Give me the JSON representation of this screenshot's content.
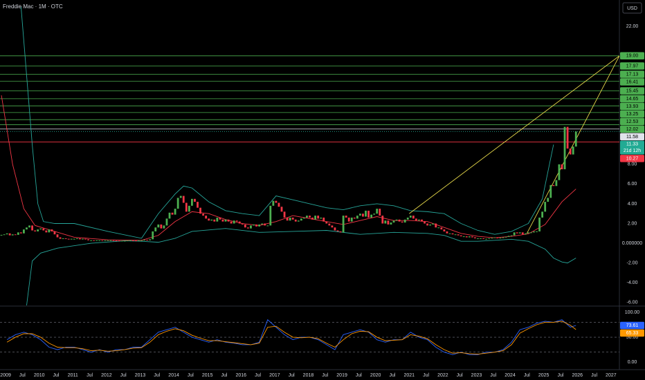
{
  "header": {
    "title": "Freddie Mac · 1M · OTC",
    "currency": "USD"
  },
  "chart_data": {
    "type": "candlestick",
    "up_color": "#4caf50",
    "down_color": "#f23645",
    "grid": false,
    "xlim": [
      "2008-11",
      "2027-04"
    ],
    "ylim": [
      -6.3,
      24.66
    ],
    "yticks": [
      {
        "value": 22,
        "label": "22.00"
      },
      {
        "value": 8,
        "label": "8.00"
      },
      {
        "value": 6,
        "label": "6.00"
      },
      {
        "value": 4,
        "label": "4.00"
      },
      {
        "value": 2,
        "label": "2.00"
      },
      {
        "value": 0,
        "label": "0.000000"
      },
      {
        "value": -2,
        "label": "-2.00"
      },
      {
        "value": -4,
        "label": "-4.00"
      },
      {
        "value": -6,
        "label": "-6.00"
      }
    ],
    "xticks": [
      {
        "value": "2009-01",
        "label": "2009"
      },
      {
        "value": "2009-07",
        "label": "Jul"
      },
      {
        "value": "2010-01",
        "label": "2010"
      },
      {
        "value": "2010-07",
        "label": "Jul"
      },
      {
        "value": "2011-01",
        "label": "2011"
      },
      {
        "value": "2011-07",
        "label": "Jul"
      },
      {
        "value": "2012-01",
        "label": "2012"
      },
      {
        "value": "2012-07",
        "label": "Jul"
      },
      {
        "value": "2013-01",
        "label": "2013"
      },
      {
        "value": "2013-07",
        "label": "Jul"
      },
      {
        "value": "2014-01",
        "label": "2014"
      },
      {
        "value": "2014-07",
        "label": "Jul"
      },
      {
        "value": "2015-01",
        "label": "2015"
      },
      {
        "value": "2015-07",
        "label": "Jul"
      },
      {
        "value": "2016-01",
        "label": "2016"
      },
      {
        "value": "2016-07",
        "label": "Jul"
      },
      {
        "value": "2017-01",
        "label": "2017"
      },
      {
        "value": "2017-07",
        "label": "Jul"
      },
      {
        "value": "2018-01",
        "label": "2018"
      },
      {
        "value": "2018-07",
        "label": "Jul"
      },
      {
        "value": "2019-01",
        "label": "2019"
      },
      {
        "value": "2019-07",
        "label": "Jul"
      },
      {
        "value": "2020-01",
        "label": "2020"
      },
      {
        "value": "2020-07",
        "label": "Jul"
      },
      {
        "value": "2021-01",
        "label": "2021"
      },
      {
        "value": "2021-07",
        "label": "Jul"
      },
      {
        "value": "2022-01",
        "label": "2022"
      },
      {
        "value": "2022-07",
        "label": "Jul"
      },
      {
        "value": "2023-01",
        "label": "2023"
      },
      {
        "value": "2023-07",
        "label": "Jul"
      },
      {
        "value": "2024-01",
        "label": "2024"
      },
      {
        "value": "2024-07",
        "label": "Jul"
      },
      {
        "value": "2025-01",
        "label": "2025"
      },
      {
        "value": "2025-07",
        "label": "Jul"
      },
      {
        "value": "2026-01",
        "label": "2026"
      },
      {
        "value": "2026-07",
        "label": "Jul"
      },
      {
        "value": "2027-01",
        "label": "2027"
      }
    ],
    "x": [
      "2008-11",
      "2008-12",
      "2009-01",
      "2009-02",
      "2009-03",
      "2009-04",
      "2009-05",
      "2009-06",
      "2009-07",
      "2009-08",
      "2009-09",
      "2009-10",
      "2009-11",
      "2009-12",
      "2010-01",
      "2010-02",
      "2010-03",
      "2010-04",
      "2010-05",
      "2010-06",
      "2010-07",
      "2010-08",
      "2010-09",
      "2010-10",
      "2010-11",
      "2010-12",
      "2011-01",
      "2011-02",
      "2011-03",
      "2011-04",
      "2011-05",
      "2011-06",
      "2011-07",
      "2011-08",
      "2011-09",
      "2011-10",
      "2011-11",
      "2011-12",
      "2012-01",
      "2012-02",
      "2012-03",
      "2012-04",
      "2012-05",
      "2012-06",
      "2012-07",
      "2012-08",
      "2012-09",
      "2012-10",
      "2012-11",
      "2012-12",
      "2013-01",
      "2013-02",
      "2013-03",
      "2013-04",
      "2013-05",
      "2013-06",
      "2013-07",
      "2013-08",
      "2013-09",
      "2013-10",
      "2013-11",
      "2013-12",
      "2014-01",
      "2014-02",
      "2014-03",
      "2014-04",
      "2014-05",
      "2014-06",
      "2014-07",
      "2014-08",
      "2014-09",
      "2014-10",
      "2014-11",
      "2014-12",
      "2015-01",
      "2015-02",
      "2015-03",
      "2015-04",
      "2015-05",
      "2015-06",
      "2015-07",
      "2015-08",
      "2015-09",
      "2015-10",
      "2015-11",
      "2015-12",
      "2016-01",
      "2016-02",
      "2016-03",
      "2016-04",
      "2016-05",
      "2016-06",
      "2016-07",
      "2016-08",
      "2016-09",
      "2016-10",
      "2016-11",
      "2016-12",
      "2017-01",
      "2017-02",
      "2017-03",
      "2017-04",
      "2017-05",
      "2017-06",
      "2017-07",
      "2017-08",
      "2017-09",
      "2017-10",
      "2017-11",
      "2017-12",
      "2018-01",
      "2018-02",
      "2018-03",
      "2018-04",
      "2018-05",
      "2018-06",
      "2018-07",
      "2018-08",
      "2018-09",
      "2018-10",
      "2018-11",
      "2018-12",
      "2019-01",
      "2019-02",
      "2019-03",
      "2019-04",
      "2019-05",
      "2019-06",
      "2019-07",
      "2019-08",
      "2019-09",
      "2019-10",
      "2019-11",
      "2019-12",
      "2020-01",
      "2020-02",
      "2020-03",
      "2020-04",
      "2020-05",
      "2020-06",
      "2020-07",
      "2020-08",
      "2020-09",
      "2020-10",
      "2020-11",
      "2020-12",
      "2021-01",
      "2021-02",
      "2021-03",
      "2021-04",
      "2021-05",
      "2021-06",
      "2021-07",
      "2021-08",
      "2021-09",
      "2021-10",
      "2021-11",
      "2021-12",
      "2022-01",
      "2022-02",
      "2022-03",
      "2022-04",
      "2022-05",
      "2022-06",
      "2022-07",
      "2022-08",
      "2022-09",
      "2022-10",
      "2022-11",
      "2022-12",
      "2023-01",
      "2023-02",
      "2023-03",
      "2023-04",
      "2023-05",
      "2023-06",
      "2023-07",
      "2023-08",
      "2023-09",
      "2023-10",
      "2023-11",
      "2023-12",
      "2024-01",
      "2024-02",
      "2024-03",
      "2024-04",
      "2024-05",
      "2024-06",
      "2024-07",
      "2024-08",
      "2024-09",
      "2024-10",
      "2024-11",
      "2024-12",
      "2025-01",
      "2025-02",
      "2025-03",
      "2025-04",
      "2025-05",
      "2025-06",
      "2025-07",
      "2025-08",
      "2025-09",
      "2025-10",
      "2025-11",
      "2025-12"
    ],
    "values": [
      0.85,
      0.9,
      1.0,
      0.8,
      0.9,
      0.85,
      1.1,
      1.0,
      1.4,
      1.6,
      1.8,
      1.3,
      1.2,
      1.4,
      1.5,
      1.3,
      1.1,
      1.4,
      1.2,
      0.9,
      0.6,
      0.45,
      0.5,
      0.45,
      0.4,
      0.45,
      0.45,
      0.5,
      0.4,
      0.45,
      0.4,
      0.3,
      0.3,
      0.25,
      0.3,
      0.3,
      0.28,
      0.3,
      0.3,
      0.3,
      0.28,
      0.27,
      0.25,
      0.25,
      0.25,
      0.28,
      0.3,
      0.28,
      0.25,
      0.3,
      0.3,
      0.35,
      0.3,
      0.4,
      1.2,
      1.6,
      1.9,
      1.5,
      1.8,
      2.5,
      3.1,
      2.9,
      3.5,
      4.6,
      4.8,
      4.1,
      3.2,
      3.8,
      4.5,
      4.2,
      3.6,
      3.0,
      2.8,
      2.5,
      2.3,
      2.4,
      2.2,
      2.6,
      2.4,
      2.2,
      2.4,
      2.2,
      2.0,
      2.3,
      2.2,
      2.0,
      1.9,
      1.6,
      1.5,
      1.8,
      1.9,
      1.7,
      1.9,
      2.0,
      1.8,
      1.8,
      3.8,
      4.3,
      4.1,
      3.7,
      3.2,
      2.6,
      2.3,
      2.6,
      2.4,
      2.2,
      2.3,
      2.5,
      2.6,
      2.8,
      2.6,
      2.4,
      2.8,
      2.5,
      2.6,
      2.2,
      2.0,
      1.8,
      1.6,
      1.3,
      1.2,
      1.1,
      2.8,
      2.6,
      2.2,
      2.6,
      2.5,
      2.8,
      3.0,
      2.7,
      3.3,
      2.6,
      2.9,
      3.0,
      3.5,
      2.8,
      2.0,
      2.3,
      1.9,
      2.1,
      2.3,
      2.4,
      2.2,
      2.1,
      2.4,
      2.6,
      2.8,
      2.5,
      2.3,
      2.4,
      2.2,
      2.0,
      1.8,
      1.9,
      2.0,
      1.6,
      1.6,
      1.4,
      1.2,
      1.0,
      1.0,
      0.9,
      0.9,
      0.8,
      0.7,
      0.7,
      0.6,
      0.7,
      0.6,
      0.5,
      0.5,
      0.5,
      0.45,
      0.45,
      0.5,
      0.55,
      0.6,
      0.5,
      0.55,
      0.6,
      0.65,
      0.75,
      0.8,
      1.1,
      1.0,
      1.1,
      0.9,
      1.0,
      1.1,
      1.1,
      1.2,
      1.2,
      2.6,
      3.2,
      4.2,
      4.6,
      5.9,
      5.8,
      6.4,
      8.0,
      7.5,
      11.8,
      9.6,
      9.0,
      9.8,
      11.33
    ],
    "overlays": [
      {
        "color": "#26a69a",
        "x": [
          "2009-06",
          "2009-10",
          "2009-12",
          "2010-02",
          "2010-06",
          "2011-01",
          "2012-01",
          "2013-01",
          "2013-07",
          "2014-01",
          "2014-04",
          "2014-07",
          "2015-01",
          "2015-07",
          "2016-01",
          "2016-07",
          "2017-01",
          "2017-07",
          "2018-01",
          "2018-07",
          "2019-01",
          "2019-07",
          "2020-01",
          "2020-07",
          "2021-01",
          "2021-07",
          "2022-01",
          "2022-07",
          "2023-01",
          "2023-07",
          "2024-01",
          "2024-07",
          "2024-12",
          "2025-04"
        ],
        "values": [
          24,
          10,
          4,
          2.2,
          2.0,
          2.0,
          1.2,
          0.5,
          3.0,
          5.0,
          5.8,
          5.6,
          4.2,
          3.3,
          3.0,
          2.8,
          4.8,
          4.4,
          4.0,
          3.6,
          3.4,
          3.8,
          4.0,
          3.8,
          3.3,
          3.2,
          3.0,
          2.0,
          1.3,
          0.9,
          1.2,
          2.0,
          4.5,
          10
        ]
      },
      {
        "color": "#f23645",
        "x": [
          "2008-11",
          "2009-03",
          "2009-07",
          "2009-11",
          "2010-06",
          "2011-01",
          "2012-01",
          "2013-01",
          "2013-07",
          "2014-01",
          "2014-07",
          "2015-01",
          "2015-07",
          "2016-01",
          "2016-07",
          "2017-01",
          "2017-07",
          "2018-01",
          "2018-07",
          "2019-01",
          "2019-07",
          "2020-01",
          "2020-07",
          "2021-01",
          "2021-07",
          "2022-01",
          "2022-07",
          "2023-01",
          "2023-07",
          "2024-01",
          "2024-07",
          "2025-01",
          "2025-07",
          "2025-12"
        ],
        "values": [
          15,
          8,
          3.5,
          1.8,
          1.2,
          0.6,
          0.35,
          0.3,
          0.8,
          2.2,
          3.2,
          3.0,
          2.4,
          2.0,
          1.8,
          2.2,
          2.8,
          2.5,
          2.2,
          1.9,
          2.3,
          2.7,
          2.3,
          2.3,
          2.2,
          1.6,
          1.0,
          0.7,
          0.55,
          0.7,
          0.95,
          1.9,
          4.2,
          5.5
        ]
      },
      {
        "color": "#26a69a",
        "x": [
          "2009-08",
          "2009-10",
          "2010-01",
          "2010-07",
          "2011-07",
          "2012-07",
          "2013-01",
          "2013-07",
          "2014-01",
          "2014-07",
          "2015-07",
          "2016-07",
          "2017-07",
          "2018-07",
          "2019-07",
          "2020-07",
          "2021-07",
          "2022-01",
          "2022-07",
          "2023-01",
          "2023-07",
          "2024-01",
          "2024-07",
          "2025-01",
          "2025-04",
          "2025-07",
          "2025-09",
          "2025-12"
        ],
        "values": [
          -6.3,
          -1.8,
          -1.0,
          -0.5,
          0,
          0.25,
          0.2,
          0.1,
          0.5,
          1.2,
          1.5,
          1.1,
          1.2,
          1.3,
          0.9,
          1.1,
          1.0,
          0.8,
          0.2,
          0.2,
          0.3,
          0.4,
          0.2,
          -0.6,
          -1.5,
          -1.9,
          -2.0,
          -1.5
        ]
      }
    ],
    "trendlines": [
      {
        "color": "#e6d84a",
        "x": [
          "2021-01",
          "2027-04"
        ],
        "values": [
          3.0,
          19.0
        ]
      },
      {
        "color": "#e6d84a",
        "x": [
          "2024-07",
          "2027-04"
        ],
        "values": [
          1.0,
          19.0
        ]
      }
    ],
    "levels": [
      {
        "value": 19.0,
        "label": "19.00",
        "color": "#4caf50",
        "label_text": "#000000"
      },
      {
        "value": 17.97,
        "label": "17.97",
        "color": "#4caf50",
        "label_text": "#000000"
      },
      {
        "value": 17.13,
        "label": "17.13",
        "color": "#4caf50",
        "label_text": "#000000"
      },
      {
        "value": 16.41,
        "label": "16.41",
        "color": "#4caf50",
        "label_text": "#000000"
      },
      {
        "value": 15.45,
        "label": "15.45",
        "color": "#4caf50",
        "label_text": "#000000"
      },
      {
        "value": 14.65,
        "label": "14.65",
        "color": "#4caf50",
        "label_text": "#000000"
      },
      {
        "value": 13.93,
        "label": "13.93",
        "color": "#4caf50",
        "label_text": "#000000"
      },
      {
        "value": 13.25,
        "label": "13.25",
        "color": "#4caf50",
        "label_text": "#000000"
      },
      {
        "value": 12.53,
        "label": "12.53",
        "color": "#4caf50",
        "label_text": "#000000"
      },
      {
        "value": 12.02,
        "label": "12.02",
        "color": "#4caf50",
        "label_text": "#000000"
      },
      {
        "value": 11.58,
        "label": "11.58",
        "color": "#e0e3eb",
        "label_text": "#000000"
      },
      {
        "value": 10.27,
        "label": "10.27",
        "color": "#f23645",
        "label_text": "#ffffff"
      }
    ],
    "last_price": {
      "value": 11.33,
      "label": "11.33",
      "countdown": "21d 12h",
      "color": "#22ab94"
    },
    "rsi": {
      "ylim": [
        -15,
        111
      ],
      "yticks": [
        {
          "value": 100,
          "label": "100.00"
        },
        {
          "value": 50,
          "label": "50.00"
        },
        {
          "value": 0,
          "label": "0.00"
        }
      ],
      "guides": [
        80,
        50,
        20
      ],
      "x": [
        "2009-01",
        "2009-04",
        "2009-07",
        "2009-10",
        "2010-01",
        "2010-04",
        "2010-07",
        "2010-10",
        "2011-01",
        "2011-04",
        "2011-07",
        "2011-10",
        "2012-01",
        "2012-04",
        "2012-07",
        "2012-10",
        "2013-01",
        "2013-04",
        "2013-07",
        "2013-10",
        "2014-01",
        "2014-04",
        "2014-07",
        "2014-10",
        "2015-01",
        "2015-04",
        "2015-07",
        "2015-10",
        "2016-01",
        "2016-04",
        "2016-07",
        "2016-10",
        "2017-01",
        "2017-04",
        "2017-07",
        "2017-10",
        "2018-01",
        "2018-04",
        "2018-07",
        "2018-10",
        "2019-01",
        "2019-04",
        "2019-07",
        "2019-10",
        "2020-01",
        "2020-04",
        "2020-07",
        "2020-10",
        "2021-01",
        "2021-04",
        "2021-07",
        "2021-10",
        "2022-01",
        "2022-04",
        "2022-07",
        "2022-10",
        "2023-01",
        "2023-04",
        "2023-07",
        "2023-10",
        "2024-01",
        "2024-04",
        "2024-07",
        "2024-10",
        "2025-01",
        "2025-04",
        "2025-07",
        "2025-10",
        "2025-12"
      ],
      "series": [
        {
          "color": "#2962ff",
          "last_label": "73.61",
          "values": [
            45,
            55,
            60,
            55,
            45,
            30,
            25,
            30,
            30,
            25,
            20,
            25,
            20,
            25,
            25,
            30,
            30,
            45,
            60,
            65,
            70,
            60,
            50,
            45,
            40,
            45,
            40,
            38,
            35,
            35,
            40,
            85,
            70,
            55,
            45,
            50,
            50,
            45,
            35,
            25,
            55,
            60,
            65,
            60,
            45,
            40,
            45,
            45,
            60,
            50,
            45,
            30,
            20,
            15,
            20,
            15,
            15,
            20,
            20,
            25,
            40,
            65,
            70,
            78,
            82,
            80,
            85,
            70,
            73.61
          ]
        },
        {
          "color": "#ff9800",
          "last_label": "65.33",
          "values": [
            40,
            50,
            57,
            57,
            50,
            38,
            30,
            29,
            29,
            27,
            23,
            24,
            22,
            23,
            25,
            28,
            29,
            40,
            55,
            62,
            67,
            63,
            54,
            48,
            43,
            43,
            41,
            39,
            37,
            35,
            38,
            70,
            72,
            60,
            50,
            49,
            50,
            47,
            38,
            30,
            45,
            57,
            62,
            61,
            50,
            43,
            44,
            45,
            55,
            52,
            47,
            35,
            25,
            18,
            19,
            17,
            16,
            18,
            20,
            23,
            35,
            58,
            67,
            75,
            80,
            80,
            82,
            74,
            65.33
          ]
        }
      ]
    }
  }
}
